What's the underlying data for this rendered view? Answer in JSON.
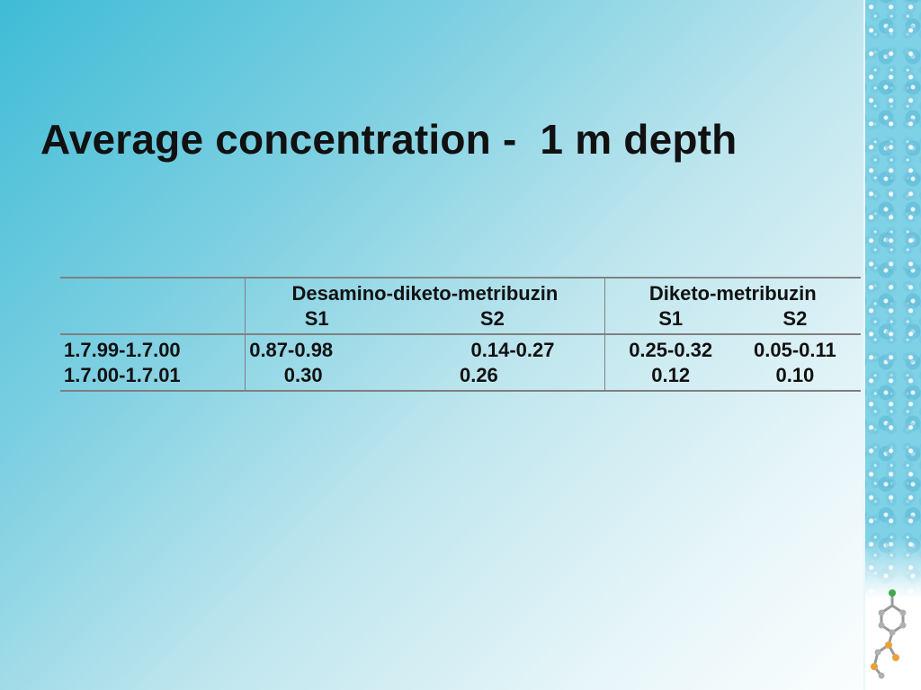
{
  "slide": {
    "title": "Average concentration -  1 m depth"
  },
  "table": {
    "groups": [
      {
        "name": "Desamino-diketo-metribuzin",
        "sub": [
          "S1",
          "S2"
        ]
      },
      {
        "name": "Diketo-metribuzin",
        "sub": [
          "S1",
          "S2"
        ]
      }
    ],
    "rows": [
      {
        "period": "1.7.99-1.7.00",
        "values": [
          "0.87-0.98",
          "0.14-0.27",
          "0.25-0.32",
          "0.05-0.11"
        ]
      },
      {
        "period": "1.7.00-1.7.01",
        "values": [
          "0.30",
          "0.26",
          "0.12",
          "0.10"
        ]
      }
    ]
  },
  "decoration": {
    "right_strip": "water-drops-icon",
    "molecule": "molecule-icon"
  },
  "colors": {
    "background_start": "#3fbcd6",
    "background_end": "#ffffff",
    "text": "#111111",
    "rule": "#808080"
  }
}
